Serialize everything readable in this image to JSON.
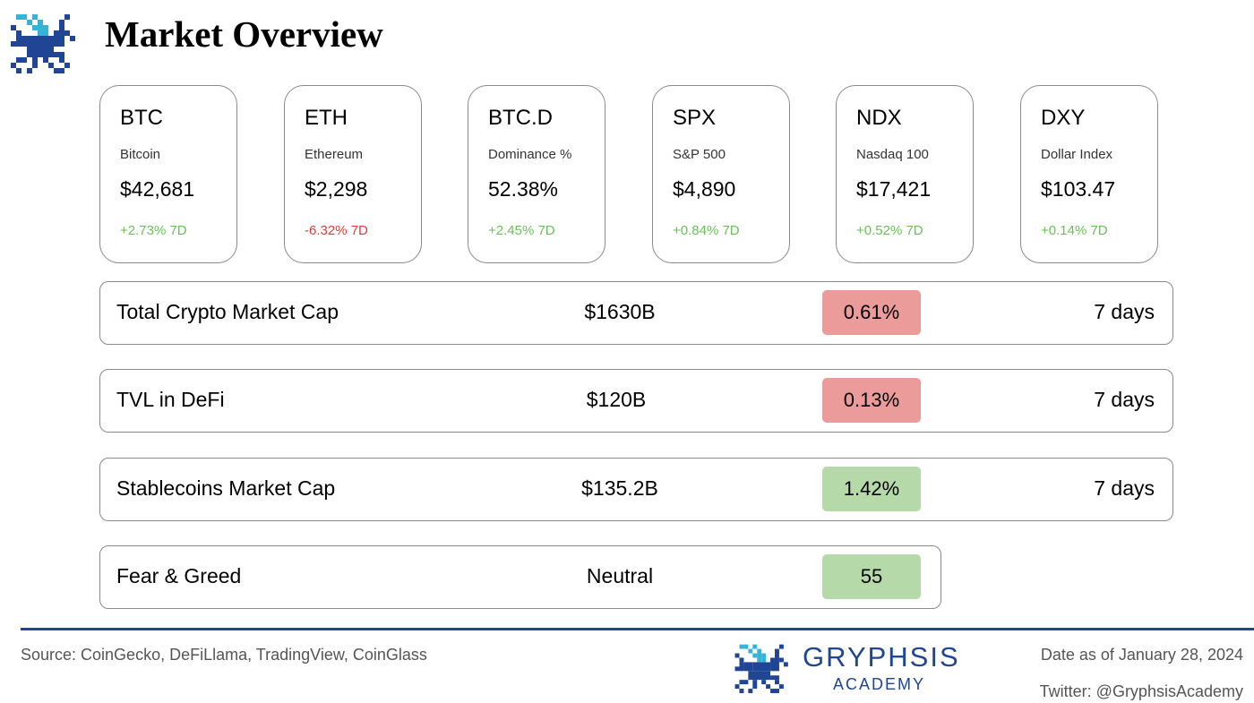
{
  "header": {
    "title": "Market Overview"
  },
  "colors": {
    "positive": "#6abf5a",
    "negative": "#d9403a",
    "pill_red": "#ec9b9b",
    "pill_green": "#b5d9a8",
    "brand": "#1f4594"
  },
  "tickers": [
    {
      "symbol": "BTC",
      "name": "Bitcoin",
      "price": "$42,681",
      "change": "+2.73% 7D",
      "direction": "up"
    },
    {
      "symbol": "ETH",
      "name": "Ethereum",
      "price": "$2,298",
      "change": "-6.32% 7D",
      "direction": "down"
    },
    {
      "symbol": "BTC.D",
      "name": "Dominance %",
      "price": "52.38%",
      "change": "+2.45% 7D",
      "direction": "up"
    },
    {
      "symbol": "SPX",
      "name": "S&P 500",
      "price": "$4,890",
      "change": "+0.84% 7D",
      "direction": "up"
    },
    {
      "symbol": "NDX",
      "name": "Nasdaq 100",
      "price": "$17,421",
      "change": "+0.52% 7D",
      "direction": "up"
    },
    {
      "symbol": "DXY",
      "name": "Dollar Index",
      "price": "$103.47",
      "change": "+0.14% 7D",
      "direction": "up"
    }
  ],
  "metrics": [
    {
      "label": "Total Crypto Market Cap",
      "value": "$1630B",
      "change": "0.61%",
      "tone": "red",
      "period": "7 days"
    },
    {
      "label": "TVL in DeFi",
      "value": "$120B",
      "change": "0.13%",
      "tone": "red",
      "period": "7 days"
    },
    {
      "label": "Stablecoins Market Cap",
      "value": "$135.2B",
      "change": "1.42%",
      "tone": "green",
      "period": "7 days"
    },
    {
      "label": "Fear & Greed",
      "value": "Neutral",
      "change": "55",
      "tone": "green"
    }
  ],
  "footer": {
    "source": "Source: CoinGecko, DeFiLlama, TradingView, CoinGlass",
    "brand_name": "GRYPHSIS",
    "brand_sub": "ACADEMY",
    "date": "Date as of January 28, 2024",
    "twitter": "Twitter: @GryphsisAcademy"
  },
  "icons": {
    "logo": "gryphon-logo-icon"
  }
}
